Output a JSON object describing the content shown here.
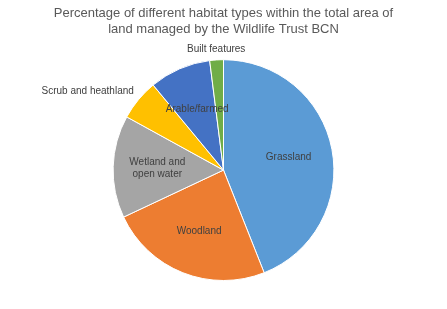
{
  "chart_data": {
    "type": "pie",
    "title": "Percentage of different habitat types within the total area of land managed by the Wildlife Trust BCN",
    "categories": [
      "Grassland",
      "Woodland",
      "Wetland and open water",
      "Scrub and heathland",
      "Arable/farmed",
      "Built features"
    ],
    "values": [
      44,
      24,
      15,
      6,
      9,
      2
    ],
    "colors": [
      "#5b9bd5",
      "#ed7d31",
      "#a5a5a5",
      "#ffc000",
      "#4472c4",
      "#70ad47"
    ]
  }
}
